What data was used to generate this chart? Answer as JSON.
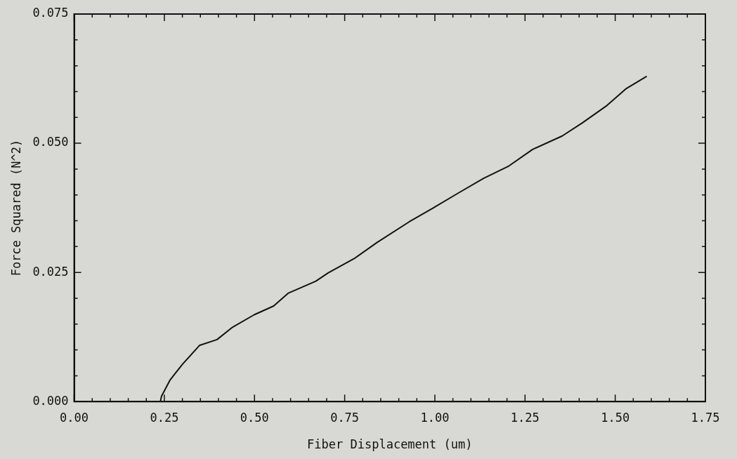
{
  "chart_data": {
    "type": "line",
    "xlabel": "Fiber Displacement (um)",
    "ylabel": "Force Squared (N^2)",
    "x": [
      0.239,
      0.242,
      0.266,
      0.3,
      0.348,
      0.396,
      0.437,
      0.499,
      0.553,
      0.594,
      0.67,
      0.704,
      0.779,
      0.84,
      0.929,
      0.991,
      1.066,
      1.135,
      1.203,
      1.271,
      1.353,
      1.408,
      1.477,
      1.531,
      1.586
    ],
    "series": [
      {
        "color": "#111111",
        "values": [
          0.0,
          0.001,
          0.0042,
          0.0072,
          0.0109,
          0.012,
          0.0143,
          0.0168,
          0.0185,
          0.021,
          0.0233,
          0.0249,
          0.0278,
          0.0308,
          0.0348,
          0.0373,
          0.0404,
          0.0432,
          0.0455,
          0.0488,
          0.0514,
          0.0539,
          0.0573,
          0.0606,
          0.0629
        ]
      }
    ],
    "xlim": [
      0,
      1.75
    ],
    "ylim": [
      0,
      0.075
    ],
    "xticks": [
      {
        "value": 0,
        "label": "0.00"
      },
      {
        "value": 0.05,
        "label": null
      },
      {
        "value": 0.1,
        "label": null
      },
      {
        "value": 0.15,
        "label": null
      },
      {
        "value": 0.2,
        "label": null
      },
      {
        "value": 0.25,
        "label": "0.25"
      },
      {
        "value": 0.3,
        "label": null
      },
      {
        "value": 0.35,
        "label": null
      },
      {
        "value": 0.4,
        "label": null
      },
      {
        "value": 0.45,
        "label": null
      },
      {
        "value": 0.5,
        "label": "0.50"
      },
      {
        "value": 0.55,
        "label": null
      },
      {
        "value": 0.6,
        "label": null
      },
      {
        "value": 0.65,
        "label": null
      },
      {
        "value": 0.7,
        "label": null
      },
      {
        "value": 0.75,
        "label": "0.75"
      },
      {
        "value": 0.8,
        "label": null
      },
      {
        "value": 0.85,
        "label": null
      },
      {
        "value": 0.9,
        "label": null
      },
      {
        "value": 0.95,
        "label": null
      },
      {
        "value": 1.0,
        "label": "1.00"
      },
      {
        "value": 1.05,
        "label": null
      },
      {
        "value": 1.1,
        "label": null
      },
      {
        "value": 1.15,
        "label": null
      },
      {
        "value": 1.2,
        "label": null
      },
      {
        "value": 1.25,
        "label": "1.25"
      },
      {
        "value": 1.3,
        "label": null
      },
      {
        "value": 1.35,
        "label": null
      },
      {
        "value": 1.4,
        "label": null
      },
      {
        "value": 1.45,
        "label": null
      },
      {
        "value": 1.5,
        "label": "1.50"
      },
      {
        "value": 1.55,
        "label": null
      },
      {
        "value": 1.6,
        "label": null
      },
      {
        "value": 1.65,
        "label": null
      },
      {
        "value": 1.7,
        "label": null
      },
      {
        "value": 1.75,
        "label": "1.75"
      }
    ],
    "yticks": [
      {
        "value": 0,
        "label": "0.000"
      },
      {
        "value": 0.005,
        "label": null
      },
      {
        "value": 0.01,
        "label": null
      },
      {
        "value": 0.015,
        "label": null
      },
      {
        "value": 0.02,
        "label": null
      },
      {
        "value": 0.025,
        "label": "0.025"
      },
      {
        "value": 0.03,
        "label": null
      },
      {
        "value": 0.035,
        "label": null
      },
      {
        "value": 0.04,
        "label": null
      },
      {
        "value": 0.045,
        "label": null
      },
      {
        "value": 0.05,
        "label": "0.050"
      },
      {
        "value": 0.055,
        "label": null
      },
      {
        "value": 0.06,
        "label": null
      },
      {
        "value": 0.065,
        "label": null
      },
      {
        "value": 0.07,
        "label": null
      },
      {
        "value": 0.075,
        "label": "0.075"
      }
    ],
    "marker": "none",
    "line_style": "solid",
    "grid": false,
    "legend": false
  }
}
